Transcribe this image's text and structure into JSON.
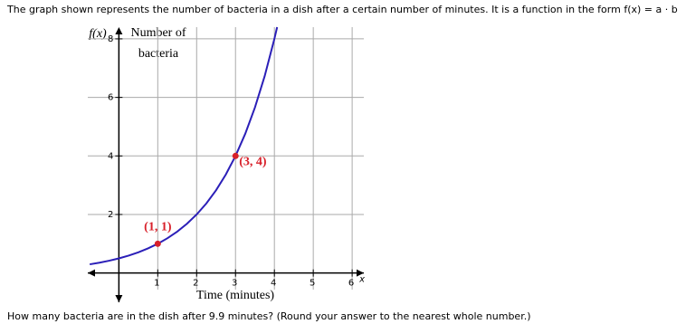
{
  "question_intro": "The graph shown represents the number of bacteria in a dish after a certain number of minutes. It is a function in the form f(x) = a · b",
  "question": "How many bacteria are in the dish after 9.9 minutes? (Round your answer to the nearest whole number.)",
  "chart_data": {
    "type": "line",
    "y_function_label": "f(x)",
    "y_label_lines": [
      "Number of",
      "bacteria"
    ],
    "x_label": "Time (minutes)",
    "x_axis_symbol": "x",
    "x": [
      -0.75,
      -0.5,
      -0.25,
      0,
      0.25,
      0.5,
      0.75,
      1,
      1.25,
      1.5,
      1.75,
      2,
      2.25,
      2.5,
      2.75,
      3,
      3.25,
      3.5,
      3.75,
      4,
      4.07
    ],
    "series": [
      {
        "color": "#2b1fb8",
        "values": [
          0.297,
          0.354,
          0.42,
          0.5,
          0.595,
          0.707,
          0.841,
          1,
          1.189,
          1.414,
          1.682,
          2,
          2.378,
          2.828,
          3.364,
          4,
          4.757,
          5.657,
          6.727,
          8,
          8.4
        ]
      }
    ],
    "points": [
      {
        "x": 1,
        "y": 1,
        "label": "(1, 1)"
      },
      {
        "x": 3,
        "y": 4,
        "label": "(3, 4)"
      }
    ],
    "point_color": "#d8202a",
    "xlim": [
      -0.8,
      6.3
    ],
    "ylim": [
      -1,
      8.4
    ],
    "xticks": [
      1,
      2,
      3,
      4,
      5,
      6
    ],
    "yticks": [
      2,
      4,
      6,
      8
    ],
    "grid": true
  }
}
